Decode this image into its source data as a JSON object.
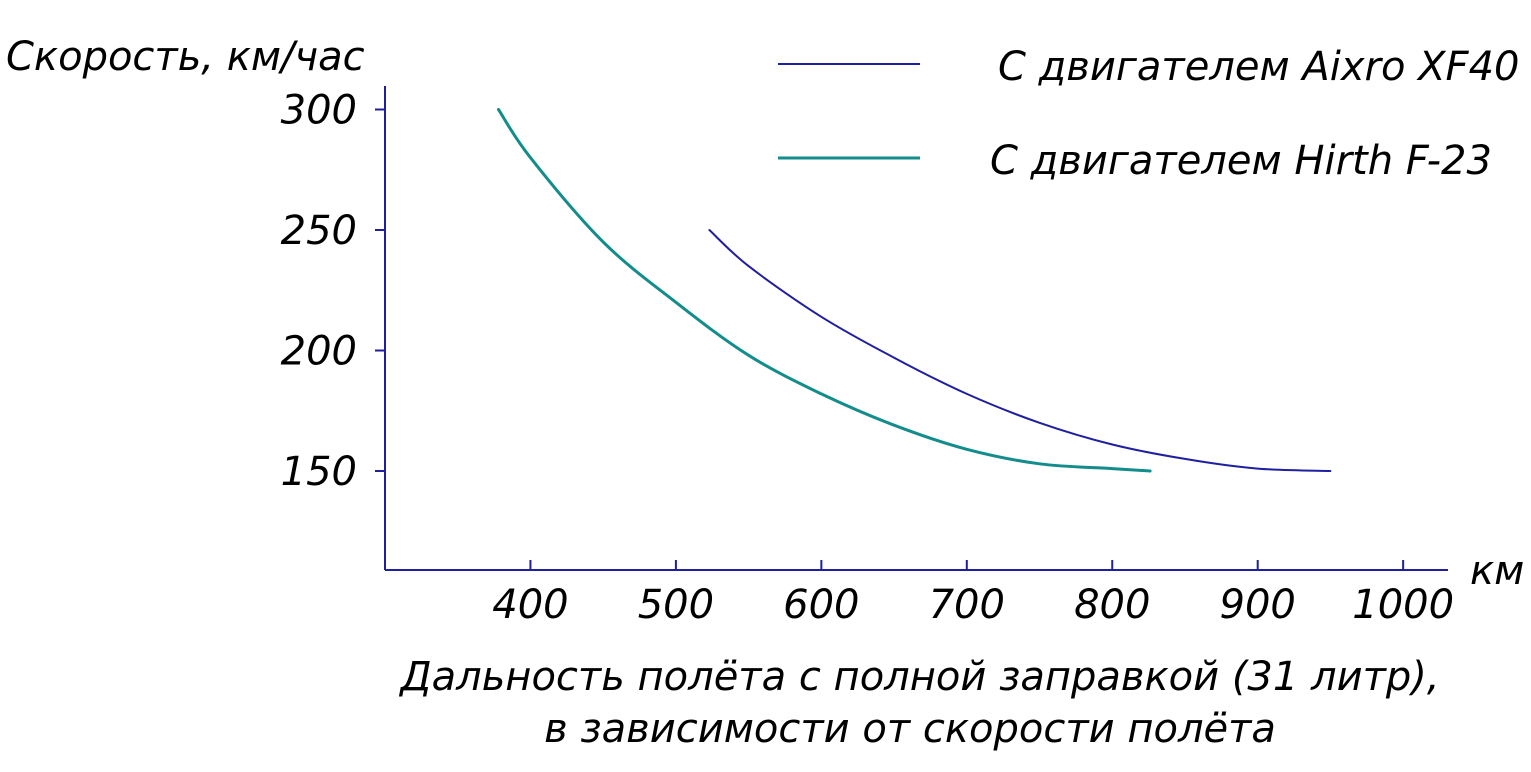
{
  "chart_data": {
    "type": "line",
    "ylabel": "Скорость, км/час",
    "xlabel": "км",
    "caption": [
      "Дальность полёта с полной заправкой (31 литр),",
      "в зависимости от скорости полёта"
    ],
    "xlim": [
      300,
      1030
    ],
    "ylim": [
      110,
      325
    ],
    "x_ticks": [
      400,
      500,
      600,
      700,
      800,
      900,
      1000
    ],
    "y_ticks": [
      150,
      200,
      250,
      300
    ],
    "grid": false,
    "legend_position": "top-right",
    "series": [
      {
        "name": "С двигателем Aixro XF40",
        "color": "#1f1fa0",
        "x": [
          523,
          550,
          600,
          650,
          700,
          750,
          800,
          850,
          900,
          950
        ],
        "y": [
          250,
          235,
          214,
          197,
          182,
          170,
          161,
          155,
          151,
          150
        ]
      },
      {
        "name": "С двигателем Hirth F-23",
        "color": "#138c8c",
        "x": [
          378,
          400,
          450,
          500,
          550,
          600,
          650,
          700,
          750,
          800,
          826
        ],
        "y": [
          300,
          280,
          245,
          220,
          198,
          182,
          169,
          159,
          153,
          151,
          150
        ]
      }
    ]
  }
}
